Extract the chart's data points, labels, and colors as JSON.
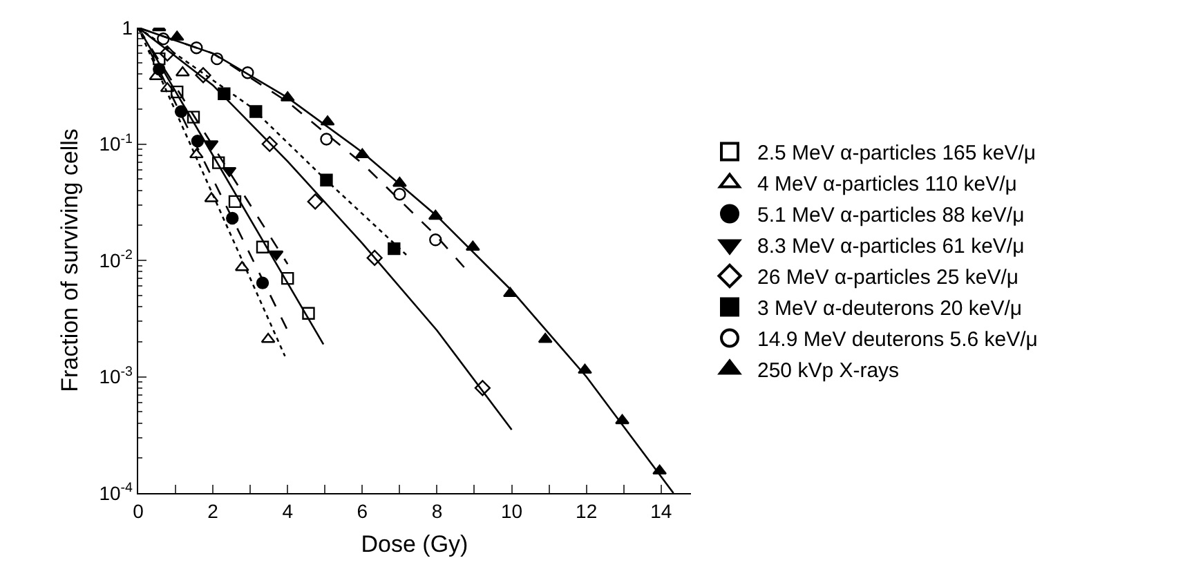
{
  "chart_data": {
    "type": "scatter",
    "xlabel": "Dose (Gy)",
    "ylabel": "Fraction of surviving cells",
    "log": "y",
    "grid": false,
    "legend": "right",
    "xlim": [
      0,
      14.8
    ],
    "xticks": [
      0,
      {
        "value": 1,
        "label": null
      },
      2,
      {
        "value": 3,
        "label": null
      },
      4,
      {
        "value": 5,
        "label": null
      },
      6,
      {
        "value": 7,
        "label": null
      },
      8,
      {
        "value": 9,
        "label": null
      },
      10,
      {
        "value": 11,
        "label": null
      },
      12,
      {
        "value": 13,
        "label": null
      },
      14
    ],
    "ylim": [
      0.0001,
      1
    ],
    "yticks": [
      1,
      {
        "value": 0.1,
        "label": "10$^{-1}$"
      },
      {
        "value": 0.01,
        "label": "10$^{-2}$"
      },
      {
        "value": 0.001,
        "label": "10$^{-3}$"
      },
      {
        "value": 0.0001,
        "label": "10$^{-4}$"
      }
    ],
    "series": [
      {
        "type": "scatter",
        "name": "2.5 MeV α-particles 165 keV/μ",
        "color": "#000000",
        "marker": "square-open",
        "x": [
          0.56,
          1.04,
          1.48,
          2.15,
          2.59,
          3.33,
          4.0,
          4.56
        ],
        "values": [
          0.54,
          0.28,
          0.17,
          0.069,
          0.032,
          0.013,
          0.007,
          0.0035
        ]
      },
      {
        "type": "line",
        "color": "#000000",
        "line_style": "solid",
        "marker": "none",
        "x": [
          0,
          4.96
        ],
        "values": [
          1,
          0.0019
        ]
      },
      {
        "type": "scatter",
        "name": "4 MeV α-particles 110 keV/μ",
        "color": "#000000",
        "marker": "triangle-open",
        "x": [
          0.48,
          0.78,
          1.19,
          1.56,
          1.96,
          2.78,
          3.48
        ],
        "values": [
          0.38,
          0.3,
          0.41,
          0.081,
          0.034,
          0.0087,
          0.0021
        ]
      },
      {
        "type": "line",
        "color": "#000000",
        "line_style": "dotted",
        "marker": "none",
        "x": [
          0,
          3.93
        ],
        "values": [
          1,
          0.0015
        ]
      },
      {
        "type": "scatter",
        "name": "5.1 MeV α-particles 88 keV/μ",
        "color": "#000000",
        "marker": "circle",
        "x": [
          0.56,
          1.15,
          1.59,
          2.52,
          3.33
        ],
        "values": [
          0.44,
          0.19,
          0.106,
          0.023,
          0.0064
        ]
      },
      {
        "type": "line",
        "color": "#000000",
        "line_style": "dashed",
        "marker": "none",
        "x": [
          0,
          4.0
        ],
        "values": [
          1,
          0.0025
        ]
      },
      {
        "type": "scatter",
        "name": "8.3 MeV α-particles 61 keV/μ",
        "color": "#000000",
        "marker": "triangle-down",
        "x": [
          1.96,
          2.44,
          3.7
        ],
        "values": [
          0.1,
          0.059,
          0.0113
        ]
      },
      {
        "type": "line",
        "color": "#000000",
        "line_style": "dashed",
        "marker": "none",
        "x": [
          0,
          4.0
        ],
        "values": [
          1,
          0.0093
        ]
      },
      {
        "type": "scatter",
        "name": "26 MeV α-particles 25 keV/μ",
        "color": "#000000",
        "marker": "diamond-open",
        "x": [
          0.78,
          1.74,
          3.52,
          4.74,
          6.33,
          9.22
        ],
        "values": [
          0.6,
          0.39,
          0.1,
          0.032,
          0.0105,
          0.0008
        ]
      },
      {
        "type": "line",
        "color": "#000000",
        "line_style": "solid",
        "marker": "none",
        "x": [
          0,
          2,
          4,
          6,
          8,
          10
        ],
        "values": [
          1,
          0.32,
          0.071,
          0.014,
          0.0025,
          0.00035
        ]
      },
      {
        "type": "scatter",
        "name": "3 MeV α-deuterons 20 keV/μ",
        "color": "#000000",
        "marker": "square",
        "x": [
          2.3,
          3.15,
          5.04,
          6.85
        ],
        "values": [
          0.27,
          0.19,
          0.049,
          0.0126
        ]
      },
      {
        "type": "line",
        "color": "#000000",
        "line_style": "dotted",
        "marker": "none",
        "x": [
          0,
          3,
          5,
          7.2
        ],
        "values": [
          1,
          0.21,
          0.05,
          0.011
        ]
      },
      {
        "type": "scatter",
        "name": "14.9 MeV deuterons 5.6 keV/μ",
        "color": "#000000",
        "marker": "circle-open",
        "x": [
          0.67,
          1.56,
          2.11,
          2.93,
          5.04,
          7.0,
          7.96
        ],
        "values": [
          0.8,
          0.67,
          0.54,
          0.41,
          0.11,
          0.037,
          0.015
        ]
      },
      {
        "type": "line",
        "color": "#000000",
        "line_style": "dashed",
        "marker": "none",
        "x": [
          0,
          2,
          4,
          6,
          8,
          8.8
        ],
        "values": [
          1,
          0.6,
          0.23,
          0.068,
          0.016,
          0.0082
        ]
      },
      {
        "type": "scatter",
        "name": "250 kVp X-rays",
        "color": "#000000",
        "marker": "triangle",
        "x": [
          0.56,
          1.04,
          4.0,
          5.07,
          6.0,
          7.0,
          7.96,
          8.96,
          9.96,
          10.9,
          11.96,
          12.96,
          13.96
        ],
        "values": [
          1.0,
          0.83,
          0.25,
          0.155,
          0.081,
          0.046,
          0.024,
          0.013,
          0.0052,
          0.0021,
          0.00114,
          0.00042,
          0.000155
        ]
      },
      {
        "type": "line",
        "color": "#000000",
        "line_style": "solid",
        "marker": "none",
        "x": [
          0,
          2,
          4,
          6,
          8,
          10,
          12,
          14.33
        ],
        "values": [
          1,
          0.6,
          0.25,
          0.085,
          0.024,
          0.0055,
          0.001,
          0.0001
        ]
      }
    ]
  }
}
